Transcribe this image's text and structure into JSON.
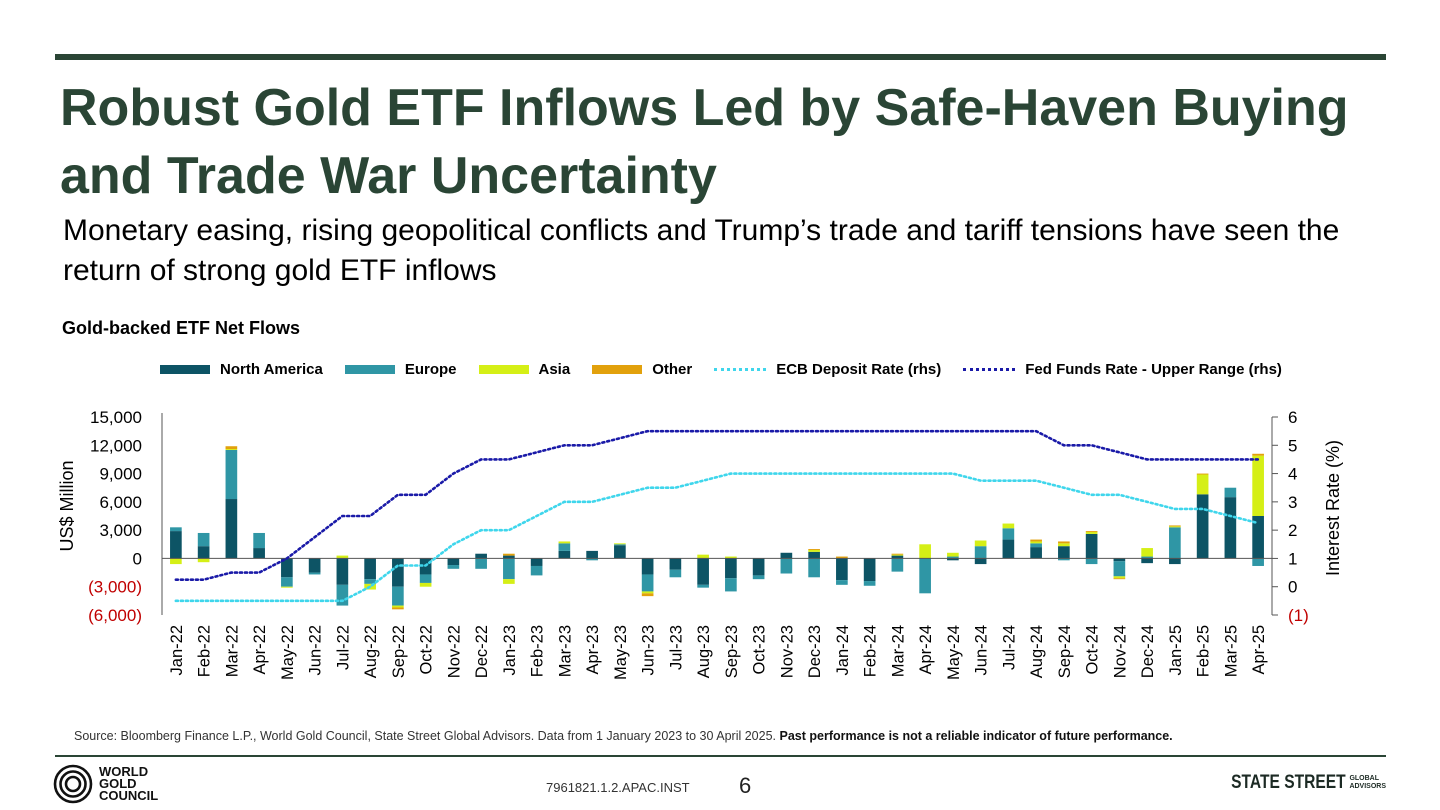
{
  "page": {
    "title": "Robust Gold ETF Inflows Led by Safe-Haven Buying and Trade War Uncertainty",
    "subtitle": "Monetary easing, rising geopolitical conflicts and Trump’s trade and tariff tensions have seen the return of strong gold ETF inflows",
    "source_text": "Source: Bloomberg Finance L.P., World Gold Council, State Street Global Advisors. Data from 1 January 2023 to 30 April 2025.",
    "disclaimer": "Past performance is not a reliable indicator of future performance.",
    "doc_code": "7961821.1.2.APAC.INST",
    "page_number": "6",
    "wgc_logo": [
      "WORLD",
      "GOLD",
      "COUNCIL"
    ],
    "ssga_logo_main": "STATE STREET",
    "ssga_logo_sub": [
      "GLOBAL",
      "ADVISORS"
    ],
    "theme_color": "#2a4535"
  },
  "chart_data": {
    "type": "bar",
    "stacked": true,
    "title": "Gold-backed ETF Net Flows",
    "ylabel": "US$ Million",
    "y2label": "Interest Rate (%)",
    "ylim": [
      -6000,
      15000
    ],
    "y2lim": [
      -1,
      6
    ],
    "yticks": [
      -6000,
      -3000,
      0,
      3000,
      6000,
      9000,
      12000,
      15000
    ],
    "ytick_labels": [
      "(6,000)",
      "(3,000)",
      "0",
      "3,000",
      "6,000",
      "9,000",
      "12,000",
      "15,000"
    ],
    "y2ticks": [
      -1,
      0,
      1,
      2,
      3,
      4,
      5,
      6
    ],
    "y2tick_labels": [
      "(1)",
      "0",
      "1",
      "2",
      "3",
      "4",
      "5",
      "6"
    ],
    "negative_tick_color": "#c00000",
    "categories": [
      "Jan-22",
      "Feb-22",
      "Mar-22",
      "Apr-22",
      "May-22",
      "Jun-22",
      "Jul-22",
      "Aug-22",
      "Sep-22",
      "Oct-22",
      "Nov-22",
      "Dec-22",
      "Jan-23",
      "Feb-23",
      "Mar-23",
      "Apr-23",
      "May-23",
      "Jun-23",
      "Jul-23",
      "Aug-23",
      "Sep-23",
      "Oct-23",
      "Nov-23",
      "Dec-23",
      "Jan-24",
      "Feb-24",
      "Mar-24",
      "Apr-24",
      "May-24",
      "Jun-24",
      "Jul-24",
      "Aug-24",
      "Sep-24",
      "Oct-24",
      "Nov-24",
      "Dec-24",
      "Jan-25",
      "Feb-25",
      "Mar-25",
      "Apr-25"
    ],
    "series": [
      {
        "name": "North America",
        "kind": "bar",
        "color": "#0d5465",
        "values": [
          2900,
          1300,
          6300,
          1100,
          -2000,
          -1500,
          -2800,
          -2200,
          -3000,
          -1700,
          -700,
          500,
          300,
          -800,
          800,
          800,
          1400,
          -1700,
          -1200,
          -2800,
          -2100,
          -1800,
          600,
          700,
          -2300,
          -2400,
          300,
          0,
          -200,
          -600,
          2000,
          1200,
          1300,
          2600,
          -300,
          -500,
          -600,
          6800,
          6500,
          4500
        ]
      },
      {
        "name": "Europe",
        "kind": "bar",
        "color": "#2f96a5",
        "values": [
          400,
          1400,
          5200,
          1600,
          -1000,
          -200,
          -2200,
          -500,
          -2000,
          -900,
          -400,
          -1100,
          -2200,
          -1000,
          800,
          -200,
          100,
          -1800,
          -800,
          -300,
          -1400,
          -400,
          -1600,
          -2000,
          -500,
          -500,
          -1400,
          -3700,
          200,
          1300,
          1200,
          400,
          -200,
          -600,
          -1600,
          200,
          3300,
          0,
          1000,
          -800
        ]
      },
      {
        "name": "Asia",
        "kind": "bar",
        "color": "#d5ef16",
        "values": [
          -600,
          -400,
          100,
          0,
          -100,
          0,
          300,
          -600,
          -200,
          -400,
          0,
          0,
          -500,
          0,
          200,
          0,
          100,
          -200,
          0,
          400,
          200,
          0,
          0,
          200,
          0,
          0,
          100,
          1500,
          400,
          600,
          500,
          200,
          300,
          200,
          -200,
          900,
          100,
          2100,
          0,
          6400
        ]
      },
      {
        "name": "Other",
        "kind": "bar",
        "color": "#e2a10c",
        "values": [
          0,
          0,
          300,
          0,
          0,
          0,
          0,
          0,
          -200,
          0,
          0,
          0,
          200,
          0,
          0,
          0,
          0,
          -300,
          0,
          0,
          0,
          0,
          0,
          100,
          200,
          0,
          100,
          0,
          0,
          0,
          0,
          200,
          200,
          100,
          -100,
          0,
          100,
          100,
          0,
          200
        ]
      },
      {
        "name": "ECB Deposit Rate (rhs)",
        "kind": "line",
        "axis": "y2",
        "color": "#3fd6ec",
        "values": [
          -0.5,
          -0.5,
          -0.5,
          -0.5,
          -0.5,
          -0.5,
          -0.5,
          0.0,
          0.75,
          0.75,
          1.5,
          2.0,
          2.0,
          2.5,
          3.0,
          3.0,
          3.25,
          3.5,
          3.5,
          3.75,
          4.0,
          4.0,
          4.0,
          4.0,
          4.0,
          4.0,
          4.0,
          4.0,
          4.0,
          3.75,
          3.75,
          3.75,
          3.5,
          3.25,
          3.25,
          3.0,
          2.75,
          2.75,
          2.5,
          2.25
        ]
      },
      {
        "name": "Fed Funds Rate - Upper Range (rhs)",
        "kind": "line",
        "axis": "y2",
        "color": "#1a1aa8",
        "values": [
          0.25,
          0.25,
          0.5,
          0.5,
          1.0,
          1.75,
          2.5,
          2.5,
          3.25,
          3.25,
          4.0,
          4.5,
          4.5,
          4.75,
          5.0,
          5.0,
          5.25,
          5.5,
          5.5,
          5.5,
          5.5,
          5.5,
          5.5,
          5.5,
          5.5,
          5.5,
          5.5,
          5.5,
          5.5,
          5.5,
          5.5,
          5.5,
          5.0,
          5.0,
          4.75,
          4.5,
          4.5,
          4.5,
          4.5,
          4.5
        ]
      }
    ]
  }
}
